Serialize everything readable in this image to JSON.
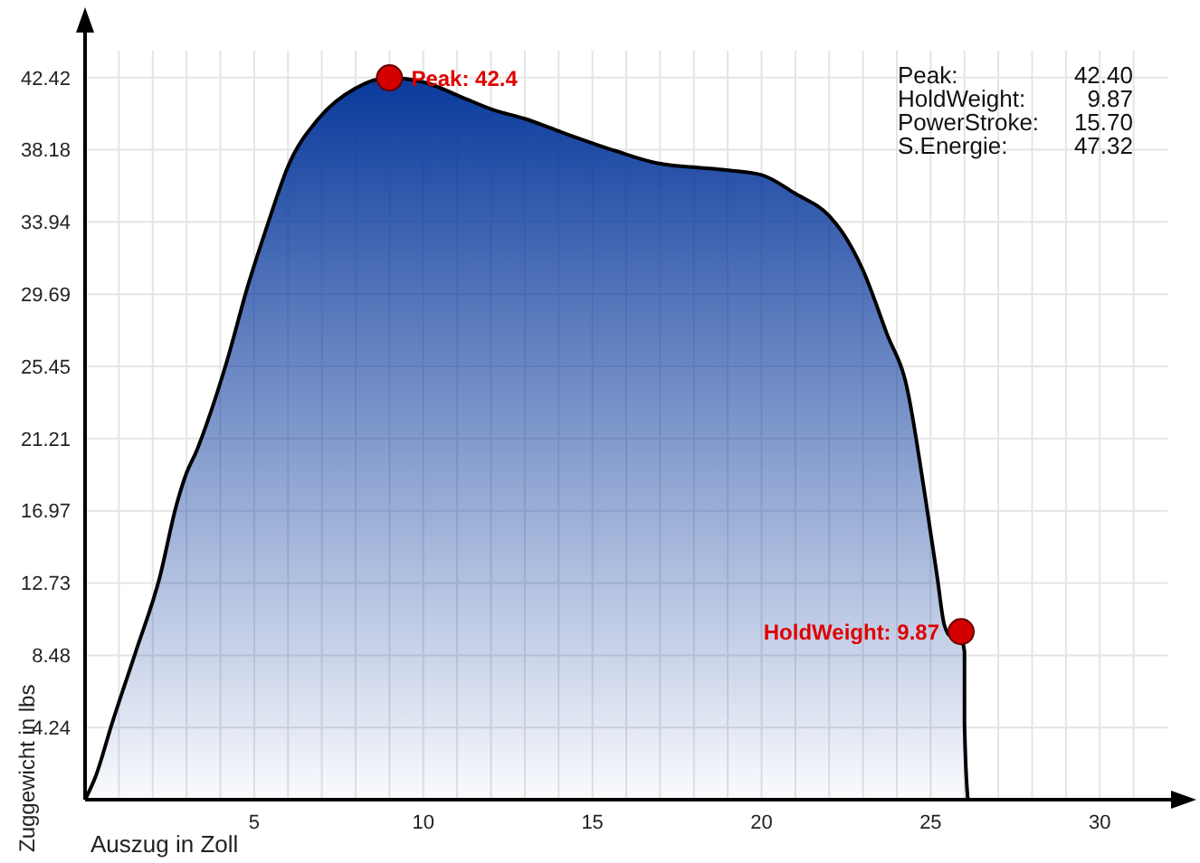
{
  "chart_data": {
    "type": "area",
    "xlabel": "Auszug in Zoll",
    "ylabel": "Zuggewicht in lbs",
    "xlim": [
      0,
      32
    ],
    "ylim": [
      0,
      44
    ],
    "xticks": [
      {
        "value": 1,
        "label": null
      },
      {
        "value": 2,
        "label": null
      },
      {
        "value": 3,
        "label": null
      },
      {
        "value": 4,
        "label": null
      },
      5,
      {
        "value": 6,
        "label": null
      },
      {
        "value": 7,
        "label": null
      },
      {
        "value": 8,
        "label": null
      },
      {
        "value": 9,
        "label": null
      },
      10,
      {
        "value": 11,
        "label": null
      },
      {
        "value": 12,
        "label": null
      },
      {
        "value": 13,
        "label": null
      },
      {
        "value": 14,
        "label": null
      },
      15,
      {
        "value": 16,
        "label": null
      },
      {
        "value": 17,
        "label": null
      },
      {
        "value": 18,
        "label": null
      },
      {
        "value": 19,
        "label": null
      },
      20,
      {
        "value": 21,
        "label": null
      },
      {
        "value": 22,
        "label": null
      },
      {
        "value": 23,
        "label": null
      },
      {
        "value": 24,
        "label": null
      },
      25,
      {
        "value": 26,
        "label": null
      },
      {
        "value": 27,
        "label": null
      },
      {
        "value": 28,
        "label": null
      },
      {
        "value": 29,
        "label": null
      },
      30,
      {
        "value": 31,
        "label": null
      }
    ],
    "yticks": [
      4.24,
      8.48,
      12.73,
      16.97,
      21.21,
      25.45,
      29.69,
      33.94,
      38.18,
      42.42
    ],
    "grid": true,
    "series": [
      {
        "color": "#0a3a9c",
        "x": [
          0,
          0.3,
          0.8,
          1.5,
          2.2,
          2.7,
          3.0,
          3.3,
          3.6,
          4.2,
          4.8,
          5.4,
          6.0,
          6.9,
          8.0,
          9.0,
          10.1,
          11.1,
          12.1,
          13,
          14.1,
          15.7,
          16.9,
          18.9,
          20,
          21,
          22,
          22.4,
          23,
          23.7,
          24.3,
          24.8,
          25.2,
          25.4,
          25.6,
          25.8,
          26,
          26,
          26.1
        ],
        "values": [
          0,
          1.3,
          4.5,
          8.7,
          13,
          17.3,
          19.2,
          20.5,
          22.1,
          25.8,
          30.1,
          33.8,
          37.2,
          40,
          41.8,
          42.4,
          42.1,
          41.3,
          40.5,
          40,
          39.2,
          38.1,
          37.4,
          37.0,
          36.7,
          35.6,
          34.3,
          33.3,
          31.1,
          27.4,
          24.2,
          18.3,
          13,
          10.3,
          9.6,
          10,
          8.7,
          4.5,
          0
        ]
      },
      {
        "type": "scatter",
        "color": "#d40000",
        "marker": "circle",
        "x": [
          9.0,
          25.9
        ],
        "values": [
          42.4,
          9.87
        ]
      }
    ],
    "annotations": [
      {
        "text": "Peak: 42.4",
        "x": 9.0,
        "y": 42.4
      },
      {
        "text": "HoldWeight: 9.87",
        "x": 25.9,
        "y": 9.87
      },
      "Peak: 42.40",
      "HoldWeight: 9.87",
      "PowerStroke: 15.70",
      "S.Energie: 47.32"
    ]
  }
}
